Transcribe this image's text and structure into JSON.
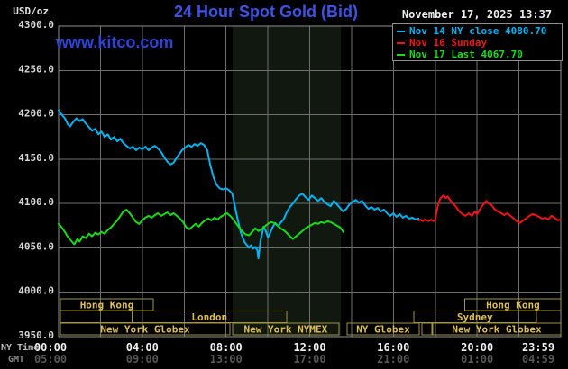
{
  "header": {
    "units_label": "USD/oz",
    "title": "24 Hour Spot Gold (Bid)",
    "watermark": "www.kitco.com",
    "datetime": "November 17, 2025 13:37"
  },
  "legend": {
    "items": [
      {
        "label": "Nov 14 NY close 4080.70",
        "color": "#00b4f4"
      },
      {
        "label": "Nov 16 Sunday",
        "color": "#f21414"
      },
      {
        "label": "Nov 17 Last 4067.70",
        "color": "#17dc17"
      }
    ]
  },
  "axes": {
    "ny_time_label": "NY Time",
    "gmt_label": "GMT",
    "y_ticks": [
      {
        "value": 4300,
        "label": "4300.0"
      },
      {
        "value": 4250,
        "label": "4250.0"
      },
      {
        "value": 4200,
        "label": "4200.0"
      },
      {
        "value": 4150,
        "label": "4150.0"
      },
      {
        "value": 4100,
        "label": "4100.0"
      },
      {
        "value": 4050,
        "label": "4050.0"
      },
      {
        "value": 4000,
        "label": "4000.0"
      },
      {
        "value": 3950,
        "label": "3950.0"
      }
    ],
    "x_ticks": [
      {
        "t": 0,
        "ny": "00:00",
        "gmt": "05:00"
      },
      {
        "t": 4,
        "ny": "04:00",
        "gmt": "09:00"
      },
      {
        "t": 8,
        "ny": "08:00",
        "gmt": "13:00"
      },
      {
        "t": 12,
        "ny": "12:00",
        "gmt": "17:00"
      },
      {
        "t": 16,
        "ny": "16:00",
        "gmt": "21:00"
      },
      {
        "t": 20,
        "ny": "20:00",
        "gmt": "01:00"
      },
      {
        "t": 23.983,
        "ny": "23:59",
        "gmt": "04:59"
      }
    ]
  },
  "colors": {
    "background": "#000000",
    "grid": "#6f6f6f",
    "border": "#8f8f8f",
    "nymex_band": "#111810",
    "session_box_border": "#a29440",
    "session_box_text": "#dfc052",
    "y_tick_text": "#d6d6d6",
    "ny_time_values": "#f2f2f2",
    "gmt_values": "#575757"
  },
  "chart_data": {
    "type": "line",
    "title": "24 Hour Spot Gold (Bid)",
    "y_axis": {
      "label": "USD/oz",
      "range": [
        3950,
        4300
      ],
      "tick_step": 50
    },
    "x_axis": {
      "label_primary": "NY Time",
      "label_secondary": "GMT",
      "unit": "hours",
      "range": [
        0,
        24
      ],
      "grid_step": 2
    },
    "nymex_highlight": {
      "start_hour": 8.31,
      "end_hour": 13.49
    },
    "sessions": [
      {
        "row": 0,
        "boxes": [
          {
            "label": "Hong Kong",
            "start": 0.09,
            "end": 4.52
          },
          {
            "label": "Hong Kong",
            "start": 19.42,
            "end": 24
          }
        ]
      },
      {
        "row": 1,
        "boxes": [
          {
            "label": "",
            "start": 0.09,
            "end": 3.52
          },
          {
            "label": "London",
            "start": 3.52,
            "end": 10.9
          },
          {
            "label": "Sydney",
            "start": 16.97,
            "end": 22.83
          }
        ]
      },
      {
        "row": 2,
        "boxes": [
          {
            "label": "New York Globex",
            "start": 0.09,
            "end": 8.18
          },
          {
            "label": "New York NYMEX",
            "start": 8.31,
            "end": 13.4
          },
          {
            "label": "NY Globex",
            "start": 13.79,
            "end": 17.23
          },
          {
            "label": "",
            "start": 17.36,
            "end": 17.84
          },
          {
            "label": "New York Globex",
            "start": 17.88,
            "end": 24
          }
        ]
      }
    ],
    "series": [
      {
        "name": "Nov 14 NY close",
        "color": "#00b4f4",
        "close_value": 4080.7,
        "points": [
          [
            0,
            4205
          ],
          [
            0.15,
            4200
          ],
          [
            0.3,
            4196
          ],
          [
            0.45,
            4189
          ],
          [
            0.55,
            4187
          ],
          [
            0.7,
            4192
          ],
          [
            0.85,
            4196
          ],
          [
            1.0,
            4193
          ],
          [
            1.15,
            4195
          ],
          [
            1.3,
            4190
          ],
          [
            1.45,
            4186
          ],
          [
            1.6,
            4182
          ],
          [
            1.75,
            4184
          ],
          [
            1.9,
            4178
          ],
          [
            2.05,
            4181
          ],
          [
            2.2,
            4175
          ],
          [
            2.35,
            4178
          ],
          [
            2.5,
            4172
          ],
          [
            2.65,
            4175
          ],
          [
            2.8,
            4170
          ],
          [
            2.95,
            4173
          ],
          [
            3.1,
            4168
          ],
          [
            3.25,
            4165
          ],
          [
            3.4,
            4162
          ],
          [
            3.55,
            4164
          ],
          [
            3.7,
            4160
          ],
          [
            3.85,
            4163
          ],
          [
            4.0,
            4161
          ],
          [
            4.15,
            4164
          ],
          [
            4.3,
            4160
          ],
          [
            4.45,
            4163
          ],
          [
            4.6,
            4165
          ],
          [
            4.75,
            4162
          ],
          [
            4.9,
            4158
          ],
          [
            5.05,
            4152
          ],
          [
            5.2,
            4147
          ],
          [
            5.35,
            4144
          ],
          [
            5.5,
            4146
          ],
          [
            5.6,
            4150
          ],
          [
            5.75,
            4155
          ],
          [
            5.9,
            4160
          ],
          [
            6.05,
            4163
          ],
          [
            6.2,
            4166
          ],
          [
            6.35,
            4164
          ],
          [
            6.5,
            4167
          ],
          [
            6.65,
            4165
          ],
          [
            6.8,
            4168
          ],
          [
            6.95,
            4166
          ],
          [
            7.1,
            4160
          ],
          [
            7.25,
            4143
          ],
          [
            7.4,
            4130
          ],
          [
            7.55,
            4121
          ],
          [
            7.7,
            4117
          ],
          [
            7.85,
            4116
          ],
          [
            8.0,
            4117
          ],
          [
            8.15,
            4115
          ],
          [
            8.3,
            4111
          ],
          [
            8.4,
            4100
          ],
          [
            8.5,
            4088
          ],
          [
            8.6,
            4078
          ],
          [
            8.7,
            4068
          ],
          [
            8.8,
            4061
          ],
          [
            8.9,
            4056
          ],
          [
            9.0,
            4053
          ],
          [
            9.1,
            4050
          ],
          [
            9.2,
            4053
          ],
          [
            9.3,
            4049
          ],
          [
            9.4,
            4051
          ],
          [
            9.5,
            4047
          ],
          [
            9.55,
            4038
          ],
          [
            9.65,
            4058
          ],
          [
            9.8,
            4074
          ],
          [
            9.9,
            4069
          ],
          [
            10.0,
            4062
          ],
          [
            10.1,
            4066
          ],
          [
            10.2,
            4072
          ],
          [
            10.35,
            4078
          ],
          [
            10.5,
            4074
          ],
          [
            10.6,
            4078
          ],
          [
            10.75,
            4082
          ],
          [
            10.9,
            4090
          ],
          [
            11.05,
            4096
          ],
          [
            11.2,
            4100
          ],
          [
            11.35,
            4105
          ],
          [
            11.5,
            4109
          ],
          [
            11.65,
            4111
          ],
          [
            11.8,
            4107
          ],
          [
            11.95,
            4104
          ],
          [
            12.1,
            4109
          ],
          [
            12.25,
            4106
          ],
          [
            12.4,
            4103
          ],
          [
            12.55,
            4106
          ],
          [
            12.7,
            4102
          ],
          [
            12.85,
            4099
          ],
          [
            13.0,
            4097
          ],
          [
            13.15,
            4103
          ],
          [
            13.3,
            4099
          ],
          [
            13.45,
            4095
          ],
          [
            13.6,
            4091
          ],
          [
            13.75,
            4094
          ],
          [
            13.9,
            4099
          ],
          [
            14.05,
            4102
          ],
          [
            14.2,
            4104
          ],
          [
            14.35,
            4101
          ],
          [
            14.5,
            4103
          ],
          [
            14.65,
            4098
          ],
          [
            14.8,
            4094
          ],
          [
            14.95,
            4096
          ],
          [
            15.1,
            4093
          ],
          [
            15.25,
            4095
          ],
          [
            15.4,
            4091
          ],
          [
            15.55,
            4093
          ],
          [
            15.7,
            4089
          ],
          [
            15.85,
            4086
          ],
          [
            16.0,
            4089
          ],
          [
            16.15,
            4085
          ],
          [
            16.3,
            4088
          ],
          [
            16.45,
            4084
          ],
          [
            16.6,
            4086
          ],
          [
            16.75,
            4083
          ],
          [
            16.9,
            4084
          ],
          [
            17.05,
            4082
          ],
          [
            17.2,
            4083
          ]
        ]
      },
      {
        "name": "Nov 16 Sunday",
        "color": "#f21414",
        "points": [
          [
            17.2,
            4081
          ],
          [
            17.6,
            4081
          ],
          [
            18.0,
            4081
          ],
          [
            18.05,
            4089
          ],
          [
            18.15,
            4100
          ],
          [
            18.25,
            4106
          ],
          [
            18.4,
            4109
          ],
          [
            18.5,
            4106
          ],
          [
            18.6,
            4108
          ],
          [
            18.7,
            4104
          ],
          [
            18.85,
            4100
          ],
          [
            19.0,
            4096
          ],
          [
            19.15,
            4091
          ],
          [
            19.3,
            4088
          ],
          [
            19.45,
            4086
          ],
          [
            19.6,
            4089
          ],
          [
            19.75,
            4086
          ],
          [
            19.9,
            4091
          ],
          [
            20.0,
            4088
          ],
          [
            20.15,
            4094
          ],
          [
            20.3,
            4099
          ],
          [
            20.45,
            4103
          ],
          [
            20.55,
            4100
          ],
          [
            20.7,
            4098
          ],
          [
            20.85,
            4093
          ],
          [
            21.0,
            4091
          ],
          [
            21.15,
            4089
          ],
          [
            21.3,
            4087
          ],
          [
            21.45,
            4089
          ],
          [
            21.6,
            4086
          ],
          [
            21.75,
            4083
          ],
          [
            21.9,
            4080
          ],
          [
            22.05,
            4078
          ],
          [
            22.2,
            4081
          ],
          [
            22.35,
            4083
          ],
          [
            22.5,
            4086
          ],
          [
            22.65,
            4088
          ],
          [
            22.8,
            4087
          ],
          [
            22.95,
            4085
          ],
          [
            23.1,
            4083
          ],
          [
            23.25,
            4084
          ],
          [
            23.4,
            4082
          ],
          [
            23.55,
            4086
          ],
          [
            23.7,
            4084
          ],
          [
            23.85,
            4081
          ],
          [
            23.98,
            4082
          ]
        ]
      },
      {
        "name": "Nov 17 Last",
        "color": "#17dc17",
        "last_value": 4067.7,
        "points": [
          [
            0,
            4077
          ],
          [
            0.15,
            4073
          ],
          [
            0.3,
            4068
          ],
          [
            0.45,
            4062
          ],
          [
            0.6,
            4058
          ],
          [
            0.75,
            4054
          ],
          [
            0.9,
            4060
          ],
          [
            1.0,
            4057
          ],
          [
            1.15,
            4063
          ],
          [
            1.3,
            4061
          ],
          [
            1.45,
            4066
          ],
          [
            1.6,
            4063
          ],
          [
            1.75,
            4067
          ],
          [
            1.9,
            4065
          ],
          [
            2.05,
            4068
          ],
          [
            2.2,
            4066
          ],
          [
            2.35,
            4070
          ],
          [
            2.5,
            4073
          ],
          [
            2.65,
            4077
          ],
          [
            2.8,
            4081
          ],
          [
            2.95,
            4086
          ],
          [
            3.1,
            4091
          ],
          [
            3.25,
            4093
          ],
          [
            3.4,
            4089
          ],
          [
            3.55,
            4084
          ],
          [
            3.7,
            4079
          ],
          [
            3.85,
            4077
          ],
          [
            4.0,
            4081
          ],
          [
            4.15,
            4084
          ],
          [
            4.3,
            4086
          ],
          [
            4.45,
            4084
          ],
          [
            4.6,
            4087
          ],
          [
            4.75,
            4089
          ],
          [
            4.9,
            4086
          ],
          [
            5.05,
            4088
          ],
          [
            5.2,
            4090
          ],
          [
            5.35,
            4087
          ],
          [
            5.5,
            4089
          ],
          [
            5.65,
            4086
          ],
          [
            5.8,
            4083
          ],
          [
            5.95,
            4079
          ],
          [
            6.1,
            4073
          ],
          [
            6.25,
            4071
          ],
          [
            6.4,
            4074
          ],
          [
            6.55,
            4077
          ],
          [
            6.7,
            4074
          ],
          [
            6.85,
            4078
          ],
          [
            7.0,
            4081
          ],
          [
            7.15,
            4083
          ],
          [
            7.3,
            4081
          ],
          [
            7.45,
            4084
          ],
          [
            7.6,
            4082
          ],
          [
            7.75,
            4085
          ],
          [
            7.9,
            4087
          ],
          [
            8.05,
            4089
          ],
          [
            8.2,
            4086
          ],
          [
            8.35,
            4082
          ],
          [
            8.5,
            4077
          ],
          [
            8.65,
            4072
          ],
          [
            8.8,
            4068
          ],
          [
            8.95,
            4065
          ],
          [
            9.1,
            4064
          ],
          [
            9.25,
            4068
          ],
          [
            9.4,
            4072
          ],
          [
            9.55,
            4069
          ],
          [
            9.7,
            4071
          ],
          [
            9.85,
            4074
          ],
          [
            10.0,
            4077
          ],
          [
            10.15,
            4079
          ],
          [
            10.3,
            4078
          ],
          [
            10.45,
            4076
          ],
          [
            10.6,
            4072
          ],
          [
            10.75,
            4070
          ],
          [
            10.9,
            4067
          ],
          [
            11.05,
            4063
          ],
          [
            11.2,
            4060
          ],
          [
            11.35,
            4063
          ],
          [
            11.5,
            4066
          ],
          [
            11.65,
            4069
          ],
          [
            11.8,
            4072
          ],
          [
            11.95,
            4074
          ],
          [
            12.1,
            4076
          ],
          [
            12.25,
            4078
          ],
          [
            12.4,
            4077
          ],
          [
            12.55,
            4079
          ],
          [
            12.7,
            4078
          ],
          [
            12.85,
            4080
          ],
          [
            13.0,
            4079
          ],
          [
            13.15,
            4077
          ],
          [
            13.3,
            4075
          ],
          [
            13.45,
            4073
          ],
          [
            13.62,
            4067.7
          ]
        ]
      }
    ]
  }
}
